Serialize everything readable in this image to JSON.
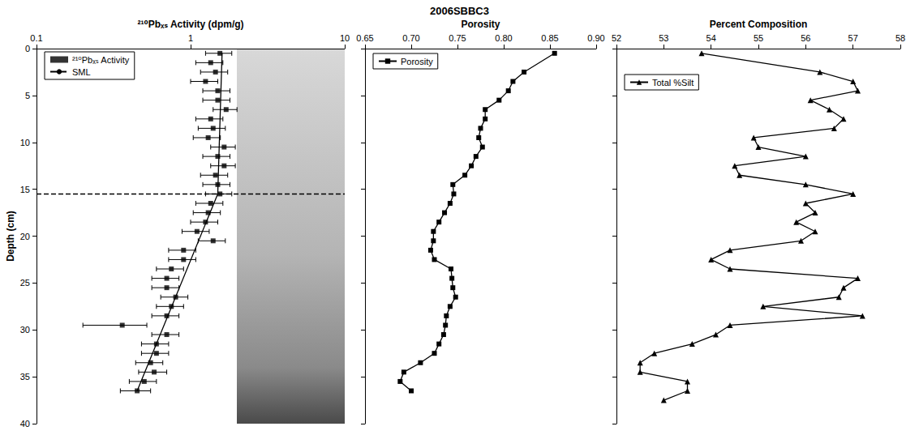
{
  "title": "2006SBBC3",
  "chart_data": [
    {
      "type": "scatter",
      "x_label": "²¹⁰Pbₓₛ Activity (dpm/g)",
      "y_label": "Depth (cm)",
      "log": "x",
      "xlim": [
        0.1,
        10
      ],
      "xticks": [
        0.1,
        1,
        10
      ],
      "ylim": [
        0,
        40
      ],
      "yticks": [
        0,
        5,
        10,
        15,
        20,
        25,
        30,
        35,
        40
      ],
      "grid": false,
      "legend": "upper left",
      "series": [
        {
          "name": "²¹⁰Pbₓₛ Activity",
          "type": "scatter",
          "color": "#000000",
          "marker": "square",
          "x": [
            1.55,
            1.35,
            1.45,
            1.25,
            1.5,
            1.5,
            1.7,
            1.35,
            1.4,
            1.3,
            1.65,
            1.5,
            1.65,
            1.45,
            1.5,
            1.55,
            1.35,
            1.3,
            1.25,
            1.1,
            1.4,
            0.9,
            0.9,
            0.75,
            0.7,
            0.7,
            0.8,
            0.75,
            0.7,
            0.36,
            0.7,
            0.6,
            0.6,
            0.55,
            0.58,
            0.5,
            0.45
          ],
          "y": [
            0.5,
            1.5,
            2.5,
            3.5,
            4.5,
            5.5,
            6.5,
            7.5,
            8.5,
            9.5,
            10.5,
            11.5,
            12.5,
            13.5,
            14.5,
            15.5,
            16.5,
            17.5,
            18.5,
            19.5,
            20.5,
            21.5,
            22.5,
            23.5,
            24.5,
            25.5,
            26.5,
            27.5,
            28.5,
            29.5,
            30.5,
            31.5,
            32.5,
            33.5,
            34.5,
            35.5,
            36.5
          ],
          "errors": [
            0.3,
            0.27,
            0.29,
            0.25,
            0.3,
            0.3,
            0.3,
            0.27,
            0.28,
            0.26,
            0.3,
            0.3,
            0.3,
            0.29,
            0.3,
            0.3,
            0.27,
            0.26,
            0.25,
            0.22,
            0.28,
            0.18,
            0.18,
            0.15,
            0.14,
            0.14,
            0.16,
            0.15,
            0.14,
            0.16,
            0.14,
            0.12,
            0.12,
            0.11,
            0.12,
            0.1,
            0.1
          ]
        },
        {
          "name": "SML",
          "type": "line",
          "color": "#000000",
          "line_style": "dashed",
          "depth": 15.5
        },
        {
          "type": "line",
          "color": "#000000",
          "line_style": "solid",
          "x": [
            1.6,
            1.5,
            0.45
          ],
          "y": [
            0.5,
            15.5,
            36.5
          ]
        }
      ]
    },
    {
      "type": "line",
      "x_label": "Porosity",
      "xlim": [
        0.65,
        0.9
      ],
      "xticks": [
        0.65,
        {
          "value": 0.7,
          "label": "0.70"
        },
        0.75,
        {
          "value": 0.8,
          "label": "0.80"
        },
        0.85,
        {
          "value": 0.9,
          "label": "0.90"
        }
      ],
      "ylim": [
        0,
        40
      ],
      "yticks": [
        0,
        5,
        10,
        15,
        20,
        25,
        30,
        35,
        40
      ],
      "grid": false,
      "legend": "upper left",
      "tick_labels": "x",
      "series": [
        {
          "name": "Porosity",
          "color": "#000000",
          "marker": "square",
          "x": [
            0.855,
            0.822,
            0.81,
            0.805,
            0.795,
            0.78,
            0.78,
            0.775,
            0.773,
            0.777,
            0.77,
            0.765,
            0.758,
            0.745,
            0.746,
            0.742,
            0.736,
            0.73,
            0.724,
            0.724,
            0.721,
            0.725,
            0.743,
            0.744,
            0.745,
            0.748,
            0.742,
            0.738,
            0.737,
            0.735,
            0.73,
            0.725,
            0.71,
            0.692,
            0.688,
            0.7
          ],
          "y": [
            0.5,
            2.5,
            3.5,
            4.5,
            5.5,
            6.5,
            7.5,
            8.5,
            9.5,
            10.5,
            11.5,
            12.5,
            13.5,
            14.5,
            15.5,
            16.5,
            17.5,
            18.5,
            19.5,
            20.5,
            21.5,
            22.5,
            23.5,
            24.5,
            25.5,
            26.5,
            27.5,
            28.5,
            29.5,
            30.5,
            31.5,
            32.5,
            33.5,
            34.5,
            35.5,
            36.5
          ]
        }
      ]
    },
    {
      "type": "line",
      "x_label": "Percent Composition",
      "xlim": [
        52,
        58
      ],
      "xticks": [
        52,
        53,
        54,
        55,
        56,
        57,
        58
      ],
      "ylim": [
        0,
        40
      ],
      "yticks": [
        0,
        5,
        10,
        15,
        20,
        25,
        30,
        35,
        40
      ],
      "grid": false,
      "legend": "upper left",
      "tick_labels": "x",
      "series": [
        {
          "name": "Total %Silt",
          "color": "#000000",
          "marker": "triangle",
          "x": [
            53.8,
            56.3,
            57.0,
            57.1,
            56.1,
            56.5,
            56.8,
            56.6,
            54.9,
            55.0,
            56.0,
            54.5,
            54.6,
            56.0,
            57.0,
            56.0,
            56.2,
            55.8,
            56.2,
            55.9,
            54.4,
            54.0,
            54.4,
            57.1,
            56.8,
            56.7,
            55.1,
            57.2,
            54.4,
            54.1,
            53.6,
            52.8,
            52.5,
            52.5,
            53.5,
            53.5,
            53.0
          ],
          "y": [
            0.5,
            2.5,
            3.5,
            4.5,
            5.5,
            6.5,
            7.5,
            8.5,
            9.5,
            10.5,
            11.5,
            12.5,
            13.5,
            14.5,
            15.5,
            16.5,
            17.5,
            18.5,
            19.5,
            20.5,
            21.5,
            22.5,
            23.5,
            24.5,
            25.5,
            26.5,
            27.5,
            28.5,
            29.5,
            30.5,
            31.5,
            32.5,
            33.5,
            34.5,
            35.5,
            36.5,
            37.5
          ]
        }
      ]
    }
  ]
}
